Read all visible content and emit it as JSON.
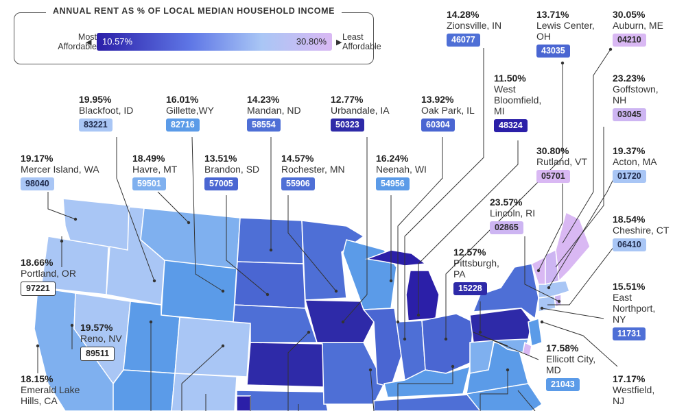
{
  "legend": {
    "title": "ANNUAL RENT AS % OF LOCAL MEDIAN HOUSEHOLD INCOME",
    "left_label": [
      "Most",
      "Affordable"
    ],
    "right_label": [
      "Least",
      "Affordable"
    ],
    "min_value": "10.57%",
    "max_value": "30.80%",
    "colors": [
      "#2b1fa8",
      "#5f77e6",
      "#a9c6f5",
      "#d9b8f3"
    ]
  },
  "places": [
    {
      "pct": "19.95%",
      "city": "Blackfoot, ID",
      "zip": "83221",
      "zip_bg": "#a9c6f5",
      "zip_fg": "#1f2a4a"
    },
    {
      "pct": "16.01%",
      "city": "Gillette,WY",
      "zip": "82716",
      "zip_bg": "#5b9be8",
      "zip_fg": "#ffffff"
    },
    {
      "pct": "14.23%",
      "city": "Mandan, ND",
      "zip": "58554",
      "zip_bg": "#4e6fd6",
      "zip_fg": "#ffffff"
    },
    {
      "pct": "12.77%",
      "city": "Urbandale, IA",
      "zip": "50323",
      "zip_bg": "#2e2aa8",
      "zip_fg": "#ffffff"
    },
    {
      "pct": "13.92%",
      "city": "Oak Park, IL",
      "zip": "60304",
      "zip_bg": "#4a66d2",
      "zip_fg": "#ffffff"
    },
    {
      "pct": "14.28%",
      "city": "Zionsville, IN",
      "zip": "46077",
      "zip_bg": "#4e6fd6",
      "zip_fg": "#ffffff"
    },
    {
      "pct": "13.71%",
      "city": "Lewis Center, OH",
      "zip": "43035",
      "zip_bg": "#4a66d2",
      "zip_fg": "#ffffff"
    },
    {
      "pct": "30.05%",
      "city": "Auburn, ME",
      "zip": "04210",
      "zip_bg": "#d9b8f3",
      "zip_fg": "#2a2a2a"
    },
    {
      "pct": "11.50%",
      "city": "West Bloomfield, MI",
      "zip": "48324",
      "zip_bg": "#2b1fa8",
      "zip_fg": "#ffffff"
    },
    {
      "pct": "23.23%",
      "city": "Goffstown, NH",
      "zip": "03045",
      "zip_bg": "#cdb5f2",
      "zip_fg": "#2a2a2a"
    },
    {
      "pct": "19.17%",
      "city": "Mercer Island, WA",
      "zip": "98040",
      "zip_bg": "#a9c6f5",
      "zip_fg": "#1f2a4a"
    },
    {
      "pct": "18.49%",
      "city": "Havre, MT",
      "zip": "59501",
      "zip_bg": "#7fb0ef",
      "zip_fg": "#ffffff"
    },
    {
      "pct": "13.51%",
      "city": "Brandon, SD",
      "zip": "57005",
      "zip_bg": "#4a66d2",
      "zip_fg": "#ffffff"
    },
    {
      "pct": "14.57%",
      "city": "Rochester, MN",
      "zip": "55906",
      "zip_bg": "#4e6fd6",
      "zip_fg": "#ffffff"
    },
    {
      "pct": "16.24%",
      "city": "Neenah, WI",
      "zip": "54956",
      "zip_bg": "#5b9be8",
      "zip_fg": "#ffffff"
    },
    {
      "pct": "30.80%",
      "city": "Rutland, VT",
      "zip": "05701",
      "zip_bg": "#d9b8f3",
      "zip_fg": "#2a2a2a"
    },
    {
      "pct": "19.37%",
      "city": "Acton, MA",
      "zip": "01720",
      "zip_bg": "#a9c6f5",
      "zip_fg": "#1f2a4a"
    },
    {
      "pct": "23.57%",
      "city": "Lincoln, RI",
      "zip": "02865",
      "zip_bg": "#cdb5f2",
      "zip_fg": "#2a2a2a"
    },
    {
      "pct": "18.54%",
      "city": "Cheshire, CT",
      "zip": "06410",
      "zip_bg": "#a9c6f5",
      "zip_fg": "#1f2a4a"
    },
    {
      "pct": "18.66%",
      "city": "Portland, OR",
      "zip": "97221",
      "zip_bg": "#ffffff",
      "zip_fg": "#222222"
    },
    {
      "pct": "12.57%",
      "city": "Pittsburgh, PA",
      "zip": "15228",
      "zip_bg": "#2e2aa8",
      "zip_fg": "#ffffff"
    },
    {
      "pct": "15.51%",
      "city": "East Northport, NY",
      "zip": "11731",
      "zip_bg": "#4e6fd6",
      "zip_fg": "#ffffff"
    },
    {
      "pct": "19.57%",
      "city": "Reno, NV",
      "zip": "89511",
      "zip_bg": "#ffffff",
      "zip_fg": "#222222"
    },
    {
      "pct": "17.58%",
      "city": "Ellicott City, MD",
      "zip": "21043",
      "zip_bg": "#5b9be8",
      "zip_fg": "#ffffff"
    },
    {
      "pct": "18.15%",
      "city": "Emerald Lake Hills, CA",
      "zip": "",
      "zip_bg": "#7fb0ef",
      "zip_fg": "#ffffff"
    },
    {
      "pct": "17.17%",
      "city": "Westfield, NJ",
      "zip": "",
      "zip_bg": "#5b9be8",
      "zip_fg": "#ffffff"
    }
  ]
}
